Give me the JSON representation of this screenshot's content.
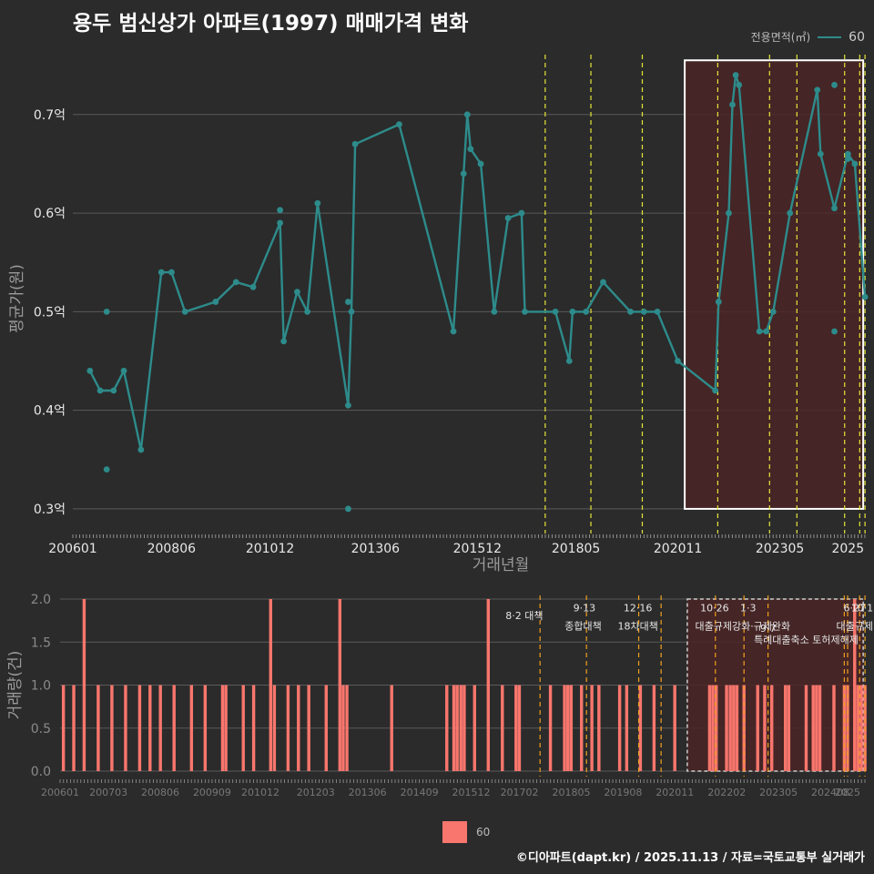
{
  "title": "용두 범신상가 아파트(1997) 매매가격 변화",
  "legend": {
    "title": "전용면적(㎡)",
    "series_label": "60"
  },
  "footer": "©디아파트(dapt.kr) / 2025.11.13 / 자료=국토교통부 실거래가",
  "colors": {
    "line": "#2e8b8b",
    "bar": "#f8766d",
    "policy_top": "#e6e63a",
    "policy_bottom": "#f0a020",
    "background": "#2b2b2b",
    "highlight_fill": "#4a2424"
  },
  "chart_data": [
    {
      "type": "line",
      "title": "용두 범신상가 아파트(1997) 매매가격 변화",
      "xlabel": "거래년월",
      "ylabel": "평균가(원)",
      "ylim": [
        0.275,
        0.77
      ],
      "yticks": [
        0.3,
        0.4,
        0.5,
        0.6,
        0.7
      ],
      "ytick_labels": [
        "0.3억",
        "0.4억",
        "0.5억",
        "0.6억",
        "0.7억"
      ],
      "xlim": [
        2006.0,
        2025.417
      ],
      "xticks": [
        2006.0,
        2008.417,
        2010.833,
        2013.417,
        2015.917,
        2018.333,
        2020.833,
        2023.333,
        2025.0
      ],
      "xtick_labels": [
        "200601",
        "200806",
        "201012",
        "201306",
        "201512",
        "201805",
        "202011",
        "202305",
        "2025"
      ],
      "series": [
        {
          "name": "60",
          "points": [
            [
              2006.42,
              0.44
            ],
            [
              2006.67,
              0.42
            ],
            [
              2007.0,
              0.42
            ],
            [
              2007.25,
              0.44
            ],
            [
              2007.67,
              0.36
            ],
            [
              2008.17,
              0.54
            ],
            [
              2008.42,
              0.54
            ],
            [
              2008.75,
              0.5
            ],
            [
              2009.5,
              0.51
            ],
            [
              2010.0,
              0.53
            ],
            [
              2010.42,
              0.525
            ],
            [
              2011.08,
              0.59
            ],
            [
              2011.17,
              0.47
            ],
            [
              2011.5,
              0.52
            ],
            [
              2011.75,
              0.5
            ],
            [
              2012.0,
              0.61
            ],
            [
              2012.75,
              0.405
            ],
            [
              2012.83,
              0.5
            ],
            [
              2012.92,
              0.67
            ],
            [
              2014.0,
              0.69
            ],
            [
              2015.33,
              0.48
            ],
            [
              2015.58,
              0.64
            ],
            [
              2015.67,
              0.7
            ],
            [
              2015.75,
              0.665
            ],
            [
              2016.0,
              0.65
            ],
            [
              2016.33,
              0.5
            ],
            [
              2016.67,
              0.595
            ],
            [
              2017.0,
              0.6
            ],
            [
              2017.08,
              0.5
            ],
            [
              2017.83,
              0.5
            ],
            [
              2018.17,
              0.45
            ],
            [
              2018.25,
              0.5
            ],
            [
              2018.58,
              0.5
            ],
            [
              2019.0,
              0.53
            ],
            [
              2019.67,
              0.5
            ],
            [
              2020.0,
              0.5
            ],
            [
              2020.33,
              0.5
            ],
            [
              2020.83,
              0.45
            ],
            [
              2021.75,
              0.42
            ],
            [
              2021.83,
              0.51
            ],
            [
              2022.08,
              0.6
            ],
            [
              2022.17,
              0.71
            ],
            [
              2022.25,
              0.74
            ],
            [
              2022.33,
              0.73
            ],
            [
              2022.83,
              0.48
            ],
            [
              2023.0,
              0.48
            ],
            [
              2023.17,
              0.5
            ],
            [
              2023.58,
              0.6
            ],
            [
              2024.25,
              0.725
            ],
            [
              2024.33,
              0.66
            ],
            [
              2024.67,
              0.605
            ],
            [
              2025.0,
              0.66
            ],
            [
              2025.17,
              0.65
            ],
            [
              2025.42,
              0.515
            ]
          ],
          "extra_points": [
            [
              2006.83,
              0.34
            ],
            [
              2006.83,
              0.5
            ],
            [
              2011.08,
              0.603
            ],
            [
              2012.75,
              0.3
            ],
            [
              2012.75,
              0.51
            ],
            [
              2024.67,
              0.73
            ],
            [
              2024.67,
              0.48
            ],
            [
              2025.0,
              0.655
            ]
          ]
        }
      ],
      "policy_lines": [
        2017.58,
        2018.7,
        2019.96,
        2021.81,
        2023.08,
        2023.75,
        2024.92,
        2025.29,
        2025.42
      ],
      "highlight_period": [
        2021.0,
        2025.42
      ]
    },
    {
      "type": "bar",
      "ylabel": "거래량(건)",
      "ylim": [
        0,
        2.0
      ],
      "yticks": [
        0,
        0.5,
        1.0,
        1.5,
        2.0
      ],
      "ytick_labels": [
        "0.0",
        "0.5",
        "1.0",
        "1.5",
        "2.0"
      ],
      "xlim": [
        2006.0,
        2025.417
      ],
      "xticks": [
        2006.0,
        2007.167,
        2008.417,
        2009.667,
        2010.833,
        2012.167,
        2013.417,
        2014.667,
        2015.917,
        2017.083,
        2018.333,
        2019.583,
        2020.833,
        2022.083,
        2023.333,
        2024.583,
        2025.0
      ],
      "xtick_labels": [
        "200601",
        "200703",
        "200806",
        "200909",
        "201012",
        "201203",
        "201306",
        "201409",
        "201512",
        "201702",
        "201805",
        "201908",
        "202011",
        "202202",
        "202305",
        "202408",
        "2025"
      ],
      "bars": [
        [
          2006.08,
          1
        ],
        [
          2006.33,
          1
        ],
        [
          2006.58,
          2
        ],
        [
          2006.92,
          1
        ],
        [
          2007.25,
          1
        ],
        [
          2007.58,
          1
        ],
        [
          2007.92,
          1
        ],
        [
          2008.17,
          1
        ],
        [
          2008.42,
          1
        ],
        [
          2008.75,
          1
        ],
        [
          2009.17,
          1
        ],
        [
          2009.5,
          1
        ],
        [
          2009.92,
          1
        ],
        [
          2010.0,
          1
        ],
        [
          2010.42,
          1
        ],
        [
          2010.67,
          1
        ],
        [
          2011.08,
          2
        ],
        [
          2011.17,
          1
        ],
        [
          2011.5,
          1
        ],
        [
          2011.75,
          1
        ],
        [
          2012.0,
          1
        ],
        [
          2012.42,
          1
        ],
        [
          2012.75,
          2
        ],
        [
          2012.83,
          1
        ],
        [
          2012.92,
          1
        ],
        [
          2014.0,
          1
        ],
        [
          2015.33,
          1
        ],
        [
          2015.5,
          1
        ],
        [
          2015.58,
          1
        ],
        [
          2015.67,
          1
        ],
        [
          2015.75,
          1
        ],
        [
          2016.0,
          1
        ],
        [
          2016.33,
          2
        ],
        [
          2016.67,
          1
        ],
        [
          2017.0,
          1
        ],
        [
          2017.08,
          1
        ],
        [
          2017.83,
          1
        ],
        [
          2018.17,
          1
        ],
        [
          2018.25,
          1
        ],
        [
          2018.33,
          1
        ],
        [
          2018.58,
          1
        ],
        [
          2018.83,
          1
        ],
        [
          2019.0,
          1
        ],
        [
          2019.5,
          1
        ],
        [
          2019.67,
          1
        ],
        [
          2020.0,
          1
        ],
        [
          2020.33,
          1
        ],
        [
          2020.83,
          1
        ],
        [
          2021.67,
          1
        ],
        [
          2021.75,
          1
        ],
        [
          2021.83,
          1
        ],
        [
          2022.08,
          1
        ],
        [
          2022.17,
          1
        ],
        [
          2022.25,
          1
        ],
        [
          2022.33,
          1
        ],
        [
          2022.5,
          1
        ],
        [
          2022.83,
          1
        ],
        [
          2023.0,
          1
        ],
        [
          2023.17,
          1
        ],
        [
          2023.5,
          1
        ],
        [
          2023.58,
          1
        ],
        [
          2024.0,
          1
        ],
        [
          2024.17,
          1
        ],
        [
          2024.25,
          1
        ],
        [
          2024.33,
          1
        ],
        [
          2024.67,
          1
        ],
        [
          2024.92,
          1
        ],
        [
          2025.0,
          1
        ],
        [
          2025.17,
          2
        ],
        [
          2025.25,
          1
        ],
        [
          2025.33,
          1
        ],
        [
          2025.42,
          1
        ]
      ],
      "policy_lines": [
        2017.58,
        2018.7,
        2019.96,
        2020.5,
        2021.81,
        2022.5,
        2023.08,
        2024.92,
        2025.0,
        2025.29,
        2025.42
      ],
      "highlight_period": [
        2021.0,
        2025.42
      ],
      "annotations": [
        {
          "x": 2017.2,
          "y": 1.81,
          "text": "8·2 대책"
        },
        {
          "x": 2018.65,
          "y": 1.9,
          "text": "9·13"
        },
        {
          "x": 2018.62,
          "y": 1.69,
          "text": "종합대책"
        },
        {
          "x": 2019.94,
          "y": 1.9,
          "text": "12·16"
        },
        {
          "x": 2019.94,
          "y": 1.69,
          "text": "18차대책"
        },
        {
          "x": 2021.79,
          "y": 1.9,
          "text": "10·26"
        },
        {
          "x": 2022.6,
          "y": 1.9,
          "text": "1·3"
        },
        {
          "x": 2022.47,
          "y": 1.69,
          "text": "대출규제강화·규제완화"
        },
        {
          "x": 2023.08,
          "y": 1.66,
          "text": "9·7"
        },
        {
          "x": 2024.0,
          "y": 1.53,
          "text": "특례대출축소 토허제해제"
        },
        {
          "x": 2025.17,
          "y": 1.9,
          "text": "6·27"
        },
        {
          "x": 2025.35,
          "y": 1.9,
          "text": "10·1"
        },
        {
          "x": 2025.17,
          "y": 1.69,
          "text": "대출규제"
        }
      ]
    }
  ]
}
